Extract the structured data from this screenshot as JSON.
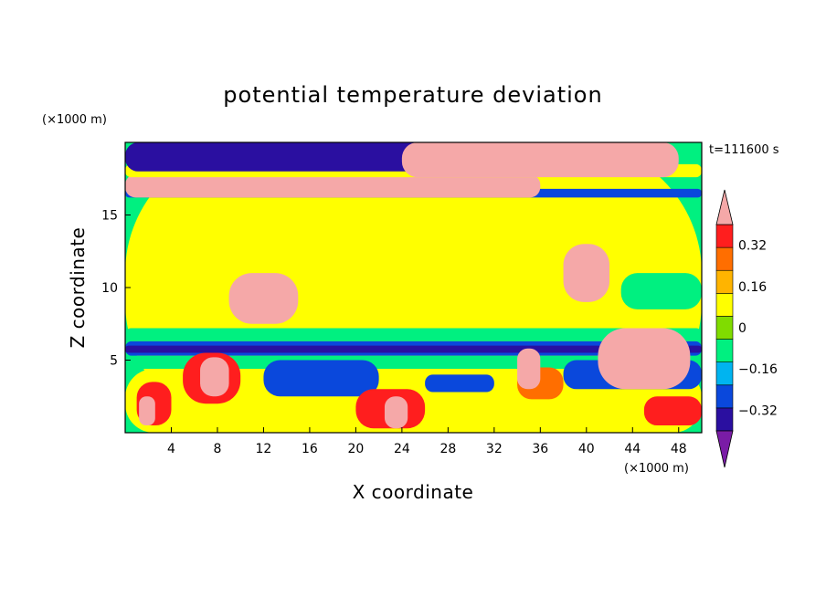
{
  "chart_data": {
    "type": "heatmap",
    "title": "potential temperature deviation",
    "xlabel": "X coordinate",
    "ylabel": "Z coordinate",
    "x_unit": "(×1000 m)",
    "y_unit": "(×1000 m)",
    "time_label": "t=111600 s",
    "xlim": [
      0,
      50
    ],
    "ylim": [
      0,
      20
    ],
    "x_ticks": [
      4,
      8,
      12,
      16,
      20,
      24,
      28,
      32,
      36,
      40,
      44,
      48
    ],
    "y_ticks": [
      5,
      10,
      15
    ],
    "colorbar": {
      "levels": [
        -0.4,
        -0.32,
        -0.24,
        -0.16,
        -0.08,
        0,
        0.08,
        0.16,
        0.24,
        0.32,
        0.4
      ],
      "tick_labels": [
        "0.32",
        "0.16",
        "0",
        "−0.16",
        "−0.32"
      ],
      "tick_values": [
        0.32,
        0.16,
        0,
        -0.16,
        -0.32
      ],
      "colors": [
        "#7a1ca6",
        "#2a0fa0",
        "#0a48dc",
        "#00b4f0",
        "#00f080",
        "#80dc00",
        "#ffff00",
        "#ffb400",
        "#ff6e00",
        "#ff1e1e",
        "#f5a8a8"
      ],
      "extend": "both"
    },
    "regions": [
      {
        "value": 0.02,
        "x0": 0,
        "x1": 50,
        "z0": 0,
        "z1": 20
      },
      {
        "value": 0.06,
        "x0": 8,
        "x1": 38,
        "z0": 11,
        "z1": 15.8
      },
      {
        "value": 0.06,
        "x0": 14,
        "x1": 30,
        "z0": 7.3,
        "z1": 9.2
      },
      {
        "value": -0.1,
        "x0": 43,
        "x1": 50,
        "z0": 8.5,
        "z1": 11
      },
      {
        "value": -0.12,
        "x0": 0,
        "x1": 50,
        "z0": 6.3,
        "z1": 7.2
      },
      {
        "value": -0.3,
        "x0": 0,
        "x1": 50,
        "z0": 5.3,
        "z1": 6.3
      },
      {
        "value": -0.38,
        "x0": 0,
        "x1": 50,
        "z0": 5.5,
        "z1": 6.0
      },
      {
        "value": -0.1,
        "x0": 0,
        "x1": 50,
        "z0": 4.4,
        "z1": 5.3
      },
      {
        "value": 0.02,
        "x0": 0,
        "x1": 50,
        "z0": 0,
        "z1": 4.4
      },
      {
        "value": -0.28,
        "x0": 12,
        "x1": 22,
        "z0": 2.5,
        "z1": 5
      },
      {
        "value": -0.28,
        "x0": 26,
        "x1": 32,
        "z0": 2.8,
        "z1": 4
      },
      {
        "value": -0.28,
        "x0": 38,
        "x1": 50,
        "z0": 3,
        "z1": 5
      },
      {
        "value": 0.26,
        "x0": 1,
        "x1": 4,
        "z0": 0.5,
        "z1": 3.5
      },
      {
        "value": 0.36,
        "x0": 1.2,
        "x1": 2.6,
        "z0": 0.5,
        "z1": 2.5
      },
      {
        "value": 0.26,
        "x0": 5,
        "x1": 10,
        "z0": 2,
        "z1": 5.5
      },
      {
        "value": 0.4,
        "x0": 6.5,
        "x1": 9,
        "z0": 2.5,
        "z1": 5.2
      },
      {
        "value": 0.26,
        "x0": 20,
        "x1": 26,
        "z0": 0.3,
        "z1": 3
      },
      {
        "value": 0.4,
        "x0": 22.5,
        "x1": 24.5,
        "z0": 0.3,
        "z1": 2.5
      },
      {
        "value": 0.2,
        "x0": 34,
        "x1": 38,
        "z0": 2.3,
        "z1": 4.5
      },
      {
        "value": 0.4,
        "x0": 34,
        "x1": 36,
        "z0": 3,
        "z1": 5.8
      },
      {
        "value": 0.26,
        "x0": 45,
        "x1": 50,
        "z0": 0.5,
        "z1": 2.5
      },
      {
        "value": 0.4,
        "x0": 41,
        "x1": 49,
        "z0": 3,
        "z1": 7.2
      },
      {
        "value": 0.36,
        "x0": 38,
        "x1": 42,
        "z0": 9,
        "z1": 13
      },
      {
        "value": 0.36,
        "x0": 9,
        "x1": 15,
        "z0": 7.5,
        "z1": 11
      },
      {
        "value": -0.3,
        "x0": 0,
        "x1": 50,
        "z0": 16.2,
        "z1": 16.8
      },
      {
        "value": 0.4,
        "x0": 0,
        "x1": 36,
        "z0": 16.2,
        "z1": 17.8
      },
      {
        "value": 0.0,
        "x0": 0,
        "x1": 50,
        "z0": 17.6,
        "z1": 18.5
      },
      {
        "value": -0.38,
        "x0": 0,
        "x1": 30,
        "z0": 18,
        "z1": 20
      },
      {
        "value": 0.4,
        "x0": 24,
        "x1": 48,
        "z0": 17.6,
        "z1": 20
      }
    ]
  }
}
